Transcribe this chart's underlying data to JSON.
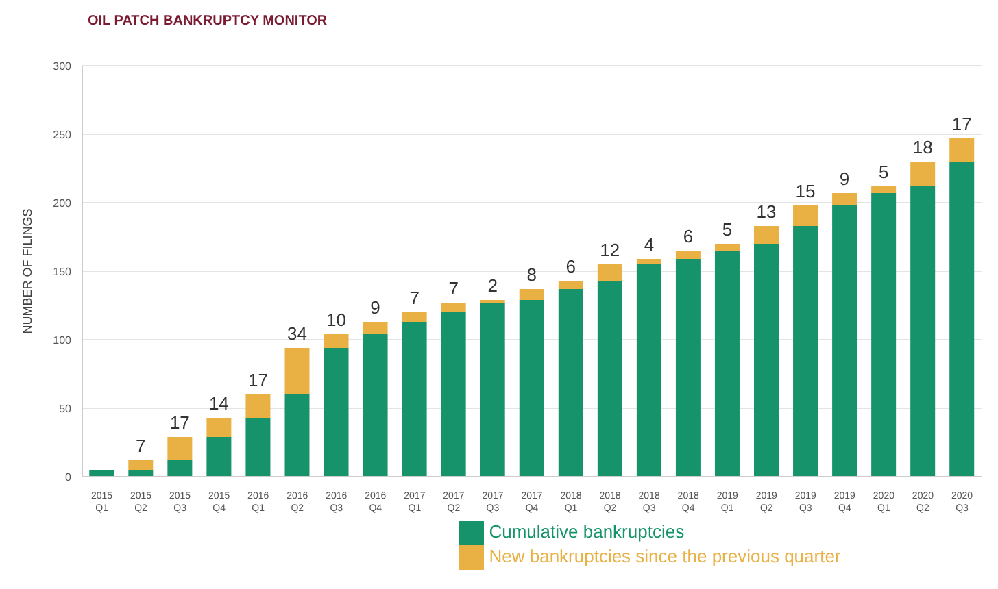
{
  "chart_data": {
    "type": "bar",
    "title": "OIL PATCH BANKRUPTCY MONITOR",
    "ylabel": "NUMBER OF FILINGS",
    "stacked": true,
    "grid": "y",
    "legend": "bottom",
    "categories": [
      "2015 Q1",
      "2015 Q2",
      "2015 Q3",
      "2015 Q4",
      "2016 Q1",
      "2016 Q2",
      "2016 Q3",
      "2016 Q4",
      "2017 Q1",
      "2017 Q2",
      "2017 Q3",
      "2017 Q4",
      "2018 Q1",
      "2018 Q2",
      "2018 Q3",
      "2018 Q4",
      "2019 Q1",
      "2019 Q2",
      "2019 Q3",
      "2019 Q4",
      "2020 Q1",
      "2020 Q2",
      "2020 Q3"
    ],
    "series": [
      {
        "name": "Cumulative bankruptcies",
        "color": "#16936b",
        "values": [
          5,
          5,
          12,
          29,
          43,
          60,
          94,
          104,
          113,
          120,
          127,
          129,
          137,
          143,
          155,
          159,
          165,
          170,
          183,
          198,
          207,
          212,
          230
        ]
      },
      {
        "name": "New bankruptcies since the previous quarter",
        "color": "#e9b043",
        "values": [
          null,
          7,
          17,
          14,
          17,
          34,
          10,
          9,
          7,
          7,
          2,
          8,
          6,
          12,
          4,
          6,
          5,
          13,
          15,
          9,
          5,
          18,
          17
        ],
        "value_labels": [
          null,
          "7",
          "17",
          "14",
          "17",
          "34",
          "10",
          "9",
          "7",
          "7",
          "2",
          "8",
          "6",
          "12",
          "4",
          "6",
          "5",
          "13",
          "15",
          "9",
          "5",
          "18",
          "17"
        ]
      }
    ],
    "ylim": [
      0,
      300
    ],
    "yticks": [
      0,
      50,
      100,
      150,
      200,
      250,
      300
    ]
  }
}
